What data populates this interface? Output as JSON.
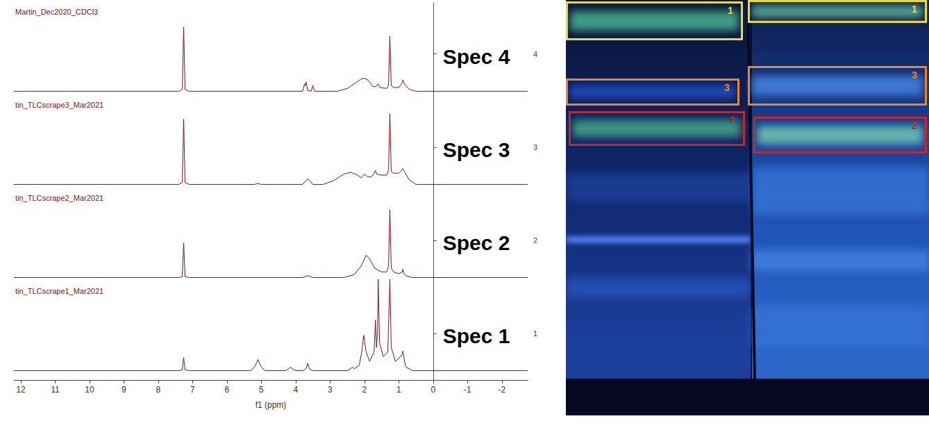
{
  "chart_data": {
    "type": "line",
    "xlabel": "f1 (ppm)",
    "xlim": [
      12.2,
      -2.75
    ],
    "xticks": [
      12,
      11,
      10,
      9,
      8,
      7,
      6,
      5,
      4,
      3,
      2,
      1,
      0,
      -1,
      -2
    ],
    "ylim": [
      0.5,
      4.55
    ],
    "yticks": [
      1,
      2,
      3,
      4
    ],
    "grid": false,
    "series": [
      {
        "name": "tin_TLCscrape1_Mar2021",
        "annotation": "Spec 1",
        "color": "#7a1414",
        "x": [
          12.2,
          7.4,
          7.3,
          7.26,
          7.22,
          7.1,
          5.3,
          5.18,
          5.1,
          5.02,
          4.9,
          4.3,
          4.2,
          4.15,
          4.1,
          4.0,
          3.8,
          3.7,
          3.65,
          3.6,
          3.5,
          2.5,
          2.4,
          2.35,
          2.3,
          2.15,
          2.08,
          2.02,
          1.95,
          1.85,
          1.72,
          1.68,
          1.65,
          1.62,
          1.6,
          1.56,
          1.45,
          1.32,
          1.26,
          1.22,
          1.1,
          0.95,
          0.9,
          0.88,
          0.86,
          0.8,
          0.6,
          -2.75
        ],
        "values": [
          0.6,
          0.6,
          0.61,
          0.74,
          0.61,
          0.6,
          0.6,
          0.65,
          0.72,
          0.65,
          0.6,
          0.6,
          0.62,
          0.64,
          0.62,
          0.6,
          0.6,
          0.62,
          0.68,
          0.62,
          0.6,
          0.6,
          0.62,
          0.64,
          0.62,
          0.66,
          0.8,
          0.98,
          0.8,
          0.7,
          0.8,
          1.14,
          0.85,
          1.0,
          1.58,
          0.9,
          0.75,
          0.8,
          1.58,
          0.85,
          0.7,
          0.75,
          0.78,
          0.81,
          0.76,
          0.64,
          0.6,
          0.6
        ]
      },
      {
        "name": "tin_TLCscrape2_Mar2021",
        "annotation": "Spec 2",
        "color": "#7a1414",
        "x": [
          12.2,
          7.4,
          7.3,
          7.26,
          7.22,
          7.1,
          3.8,
          3.65,
          3.5,
          2.6,
          2.3,
          2.1,
          2.0,
          1.95,
          1.85,
          1.7,
          1.5,
          1.35,
          1.3,
          1.26,
          1.22,
          1.15,
          1.0,
          0.9,
          0.88,
          0.86,
          0.8,
          0.6,
          -2.75
        ],
        "values": [
          1.6,
          1.6,
          1.61,
          1.97,
          1.61,
          1.6,
          1.6,
          1.62,
          1.6,
          1.6,
          1.63,
          1.72,
          1.8,
          1.84,
          1.8,
          1.7,
          1.66,
          1.66,
          1.72,
          2.33,
          1.7,
          1.66,
          1.64,
          1.66,
          1.69,
          1.65,
          1.62,
          1.6,
          1.6
        ]
      },
      {
        "name": "tin_TLCscrape3_Mar2021",
        "annotation": "Spec 3",
        "color": "#7a1414",
        "x": [
          12.2,
          7.4,
          7.3,
          7.26,
          7.22,
          7.1,
          5.2,
          5.1,
          5.0,
          3.8,
          3.65,
          3.5,
          3.2,
          2.9,
          2.6,
          2.4,
          2.2,
          2.1,
          2.0,
          1.9,
          1.8,
          1.72,
          1.68,
          1.64,
          1.5,
          1.35,
          1.3,
          1.26,
          1.22,
          1.15,
          1.0,
          0.92,
          0.88,
          0.84,
          0.7,
          0.5,
          -2.75
        ],
        "values": [
          2.6,
          2.6,
          2.62,
          3.3,
          2.62,
          2.6,
          2.6,
          2.61,
          2.6,
          2.6,
          2.66,
          2.6,
          2.6,
          2.64,
          2.71,
          2.73,
          2.7,
          2.67,
          2.71,
          2.68,
          2.68,
          2.72,
          2.75,
          2.71,
          2.7,
          2.7,
          2.75,
          3.36,
          2.74,
          2.72,
          2.72,
          2.75,
          2.77,
          2.74,
          2.65,
          2.6,
          2.6
        ]
      },
      {
        "name": "Martin_Dec2020_CDCl3",
        "annotation": "Spec 4",
        "color": "#7a1414",
        "x": [
          12.2,
          7.4,
          7.3,
          7.26,
          7.22,
          7.1,
          3.8,
          3.74,
          3.72,
          3.7,
          3.65,
          3.55,
          3.5,
          3.45,
          2.8,
          2.5,
          2.3,
          2.1,
          2.0,
          1.9,
          1.75,
          1.66,
          1.6,
          1.55,
          1.35,
          1.3,
          1.26,
          1.22,
          1.15,
          1.0,
          0.92,
          0.88,
          0.84,
          0.7,
          0.5,
          -2.75
        ],
        "values": [
          3.6,
          3.6,
          3.62,
          4.29,
          3.62,
          3.6,
          3.6,
          3.68,
          3.66,
          3.7,
          3.61,
          3.6,
          3.66,
          3.6,
          3.6,
          3.63,
          3.68,
          3.73,
          3.74,
          3.72,
          3.65,
          3.65,
          3.68,
          3.64,
          3.63,
          3.66,
          4.19,
          3.66,
          3.64,
          3.64,
          3.68,
          3.72,
          3.68,
          3.62,
          3.6,
          3.6
        ]
      }
    ]
  },
  "plate": {
    "lanes": [
      {
        "boxes": [
          {
            "label": "1",
            "color": "#e8dc2c"
          },
          {
            "label": "3",
            "color": "#e8862a"
          },
          {
            "label": "2",
            "color": "#c4282c"
          }
        ]
      },
      {
        "boxes": [
          {
            "label": "1",
            "color": "#e8dc2c"
          },
          {
            "label": "3",
            "color": "#e8862a"
          },
          {
            "label": "2",
            "color": "#c4282c"
          }
        ]
      }
    ]
  }
}
